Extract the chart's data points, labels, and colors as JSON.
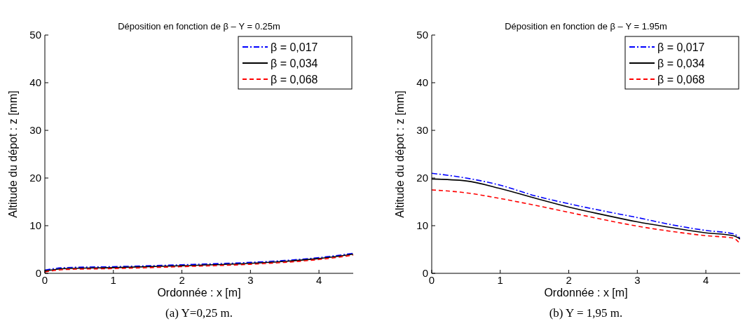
{
  "chart_data": [
    {
      "type": "line",
      "title": "Déposition en fonction de β – Y = 0.25m",
      "xlabel": "Ordonnée : x [m]",
      "ylabel": "Altitude du dépot : z [mm]",
      "annotations": [
        "(a) Y=0,25 m."
      ],
      "xlim": [
        0,
        4.5
      ],
      "ylim": [
        0,
        50
      ],
      "xticks": [
        0,
        1,
        2,
        3,
        4
      ],
      "yticks": [
        0,
        10,
        20,
        30,
        40,
        50
      ],
      "legend": "top right",
      "grid": false,
      "x": [
        0,
        0.3,
        1,
        2,
        3,
        3.5,
        4,
        4.5
      ],
      "series": [
        {
          "name": "β = 0,017",
          "color": "#0000ff",
          "line_style": "dashdot",
          "values": [
            0.7,
            1.2,
            1.4,
            1.8,
            2.3,
            2.7,
            3.3,
            4.2
          ]
        },
        {
          "name": "β = 0,034",
          "color": "#000000",
          "line_style": "solid",
          "values": [
            0.5,
            1.0,
            1.2,
            1.6,
            2.1,
            2.5,
            3.1,
            4.0
          ]
        },
        {
          "name": "β = 0,068",
          "color": "#ff0000",
          "line_style": "dashed",
          "values": [
            0.3,
            0.8,
            1.0,
            1.4,
            1.9,
            2.3,
            2.9,
            3.8
          ]
        }
      ]
    },
    {
      "type": "line",
      "title": "Déposition en fonction de β – Y = 1.95m",
      "xlabel": "Ordonnée : x [m]",
      "ylabel": "Altitude du dépot : z [mm]",
      "annotations": [
        "(b) Y = 1,95 m."
      ],
      "xlim": [
        0,
        4.5
      ],
      "ylim": [
        0,
        50
      ],
      "xticks": [
        0,
        1,
        2,
        3,
        4
      ],
      "yticks": [
        0,
        10,
        20,
        30,
        40,
        50
      ],
      "legend": "top right",
      "grid": false,
      "x": [
        0,
        0.5,
        1,
        1.5,
        2,
        2.5,
        3,
        3.5,
        4,
        4.4,
        4.5
      ],
      "series": [
        {
          "name": "β = 0,017",
          "color": "#0000ff",
          "line_style": "dashdot",
          "values": [
            21,
            20.0,
            18.5,
            16.3,
            14.6,
            13.1,
            11.7,
            10.2,
            9.0,
            8.3,
            7.4
          ]
        },
        {
          "name": "β = 0,034",
          "color": "#000000",
          "line_style": "solid",
          "values": [
            19.8,
            19.4,
            17.8,
            15.8,
            13.9,
            12.3,
            10.8,
            9.6,
            8.5,
            7.9,
            7.2
          ]
        },
        {
          "name": "β = 0,068",
          "color": "#ff0000",
          "line_style": "dashed",
          "values": [
            17.5,
            16.9,
            15.7,
            14.3,
            12.8,
            11.3,
            9.9,
            8.8,
            7.9,
            7.4,
            6.2
          ]
        }
      ]
    }
  ]
}
